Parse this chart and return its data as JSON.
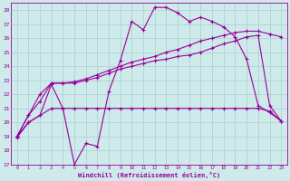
{
  "xlabel": "Windchill (Refroidissement éolien,°C)",
  "background_color": "#ceeaea",
  "grid_color": "#aacece",
  "line_color": "#990099",
  "x_ticks": [
    0,
    1,
    2,
    3,
    4,
    5,
    6,
    7,
    8,
    9,
    10,
    11,
    12,
    13,
    14,
    15,
    16,
    17,
    18,
    19,
    20,
    21,
    22,
    23
  ],
  "ylim": [
    17,
    28.5
  ],
  "xlim": [
    -0.5,
    23.5
  ],
  "series1_y": [
    18.9,
    20.0,
    20.5,
    22.7,
    21.0,
    17.0,
    18.5,
    18.3,
    22.2,
    24.4,
    27.2,
    26.6,
    28.2,
    28.2,
    27.8,
    27.2,
    27.5,
    27.2,
    26.8,
    26.1,
    24.5,
    21.2,
    20.7,
    20.1
  ],
  "series2_y": [
    19.0,
    20.0,
    20.5,
    21.0,
    21.0,
    21.0,
    21.0,
    21.0,
    21.0,
    21.0,
    21.0,
    21.0,
    21.0,
    21.0,
    21.0,
    21.0,
    21.0,
    21.0,
    21.0,
    21.0,
    21.0,
    21.0,
    20.8,
    20.1
  ],
  "series3_y": [
    19.0,
    20.5,
    21.5,
    22.8,
    22.8,
    22.8,
    23.0,
    23.2,
    23.5,
    23.8,
    24.0,
    24.2,
    24.4,
    24.5,
    24.7,
    24.8,
    25.0,
    25.3,
    25.6,
    25.8,
    26.1,
    26.2,
    21.2,
    20.1
  ],
  "series4_y": [
    19.0,
    20.5,
    22.0,
    22.8,
    22.8,
    22.9,
    23.1,
    23.4,
    23.7,
    24.0,
    24.3,
    24.5,
    24.7,
    25.0,
    25.2,
    25.5,
    25.8,
    26.0,
    26.2,
    26.4,
    26.5,
    26.5,
    26.3,
    26.1
  ]
}
